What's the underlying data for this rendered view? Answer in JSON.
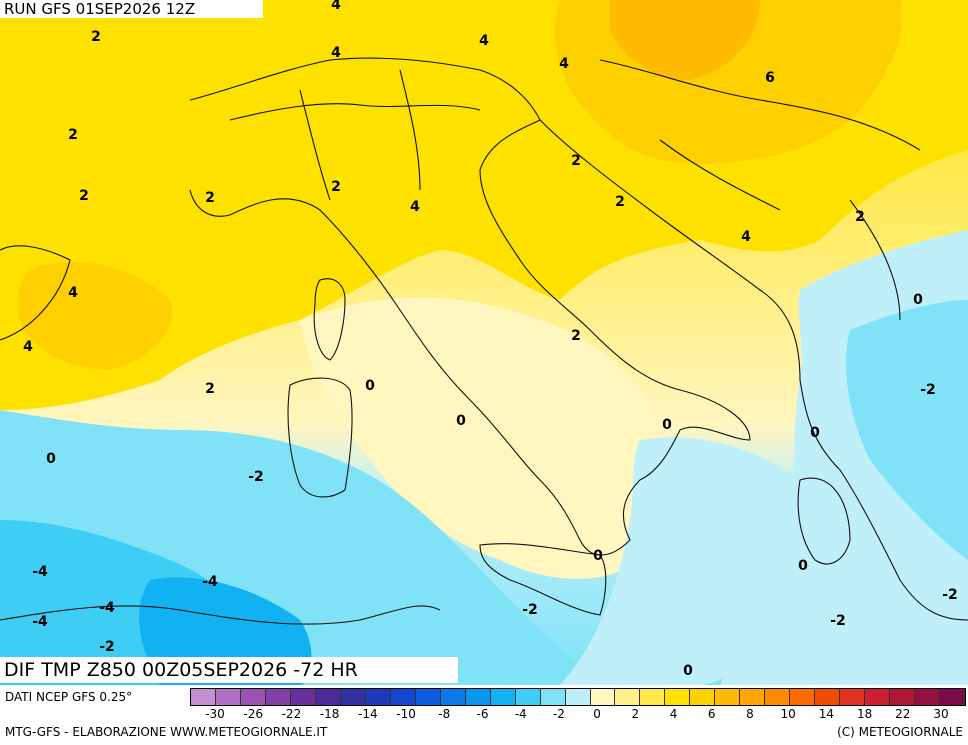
{
  "header": {
    "run": "RUN GFS 01SEP2026 12Z"
  },
  "title": "DIF TMP Z850 00Z05SEP2026 -72 HR",
  "footer": {
    "source": "DATI NCEP GFS 0.25°",
    "credit_left": "MTG-GFS - ELABORAZIONE WWW.METEOGIORNALE.IT",
    "credit_right": "(C) METEOGIORNALE"
  },
  "colorbar": {
    "colors": [
      "#c58ed0",
      "#b070c4",
      "#9a52b3",
      "#8340a8",
      "#6a2f9e",
      "#4b2c99",
      "#3231a0",
      "#1f3ab8",
      "#1446d0",
      "#0c5de0",
      "#0a7ae8",
      "#0a95ee",
      "#10b2f2",
      "#3ecdf5",
      "#7fe2f7",
      "#bff0fa",
      "#fff6c0",
      "#fff08a",
      "#ffe94d",
      "#ffe100",
      "#ffd000",
      "#ffbb00",
      "#ffa600",
      "#ff8c00",
      "#ff6a00",
      "#f24c00",
      "#e03020",
      "#cc2030",
      "#b01838",
      "#951040",
      "#7a0a48"
    ],
    "ticks": [
      "-30",
      "-26",
      "-22",
      "-18",
      "-14",
      "-10",
      "-8",
      "-6",
      "-4",
      "-2",
      "0",
      "2",
      "4",
      "6",
      "8",
      "10",
      "14",
      "18",
      "22",
      "30"
    ]
  },
  "contour_labels": [
    {
      "text": "4"
    },
    {
      "text": "2"
    },
    {
      "text": "4"
    },
    {
      "text": "4"
    },
    {
      "text": "4"
    },
    {
      "text": "6"
    },
    {
      "text": "2"
    },
    {
      "text": "2"
    },
    {
      "text": "2"
    },
    {
      "text": "2"
    },
    {
      "text": "2"
    },
    {
      "text": "2"
    },
    {
      "text": "4"
    },
    {
      "text": "2"
    },
    {
      "text": "4"
    },
    {
      "text": "2"
    },
    {
      "text": "4"
    },
    {
      "text": "4"
    },
    {
      "text": "0"
    },
    {
      "text": "2"
    },
    {
      "text": "0"
    },
    {
      "text": "-2"
    },
    {
      "text": "2"
    },
    {
      "text": "0"
    },
    {
      "text": "0"
    },
    {
      "text": "0"
    },
    {
      "text": "0"
    },
    {
      "text": "-2"
    },
    {
      "text": "0"
    },
    {
      "text": "0"
    },
    {
      "text": "-4"
    },
    {
      "text": "-4"
    },
    {
      "text": "-4"
    },
    {
      "text": "-4"
    },
    {
      "text": "-2"
    },
    {
      "text": "-2"
    },
    {
      "text": "-2"
    },
    {
      "text": "-2"
    },
    {
      "text": "0"
    }
  ]
}
